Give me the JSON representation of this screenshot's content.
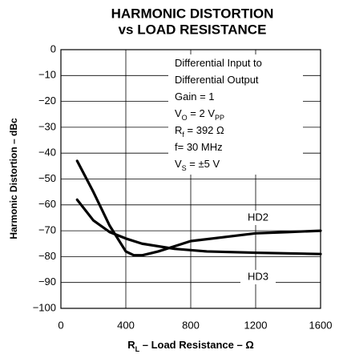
{
  "chart_data": {
    "type": "line",
    "title": [
      "HARMONIC DISTORTION",
      "vs LOAD RESISTANCE"
    ],
    "xlabel": [
      "R",
      "L",
      " – Load Resistance – Ω"
    ],
    "ylabel": "Harmonic Distortion – dBc",
    "annotation": [
      [
        "Differential Input to"
      ],
      [
        "Differential Output"
      ],
      [
        "Gain = 1"
      ],
      [
        "V",
        "O",
        " = 2 V",
        "PP"
      ],
      [
        "R",
        "f",
        " = 392 Ω"
      ],
      [
        "f= 30 MHz"
      ],
      [
        "V",
        "S",
        " = ±5 V"
      ]
    ],
    "xlim": [
      0,
      1600
    ],
    "xticks": [
      0,
      400,
      800,
      1200,
      1600
    ],
    "ylim": [
      -100,
      0
    ],
    "yticks": [
      {
        "value": -100,
        "label": "−100"
      },
      {
        "value": -90,
        "label": "−90"
      },
      {
        "value": -80,
        "label": "−80"
      },
      {
        "value": -70,
        "label": "−70"
      },
      {
        "value": -60,
        "label": "−60"
      },
      {
        "value": -50,
        "label": "−50"
      },
      {
        "value": -40,
        "label": "−40"
      },
      {
        "value": -30,
        "label": "−30"
      },
      {
        "value": -20,
        "label": "−20"
      },
      {
        "value": -10,
        "label": "−10"
      },
      0
    ],
    "grid": true,
    "series": [
      {
        "name": "HD2",
        "color": "#000000",
        "x": [
          100,
          200,
          300,
          400,
          450,
          500,
          600,
          700,
          800,
          1000,
          1200,
          1400,
          1600
        ],
        "values": [
          -43,
          -55,
          -68,
          -78,
          -79.5,
          -79.5,
          -78,
          -76,
          -74,
          -72.5,
          -71,
          -70.5,
          -70
        ]
      },
      {
        "name": "HD3",
        "color": "#000000",
        "x": [
          100,
          200,
          300,
          400,
          500,
          700,
          900,
          1200,
          1600
        ],
        "values": [
          -58,
          -66,
          -70.5,
          -73,
          -75,
          -77,
          -78,
          -78.5,
          -79
        ]
      }
    ]
  }
}
